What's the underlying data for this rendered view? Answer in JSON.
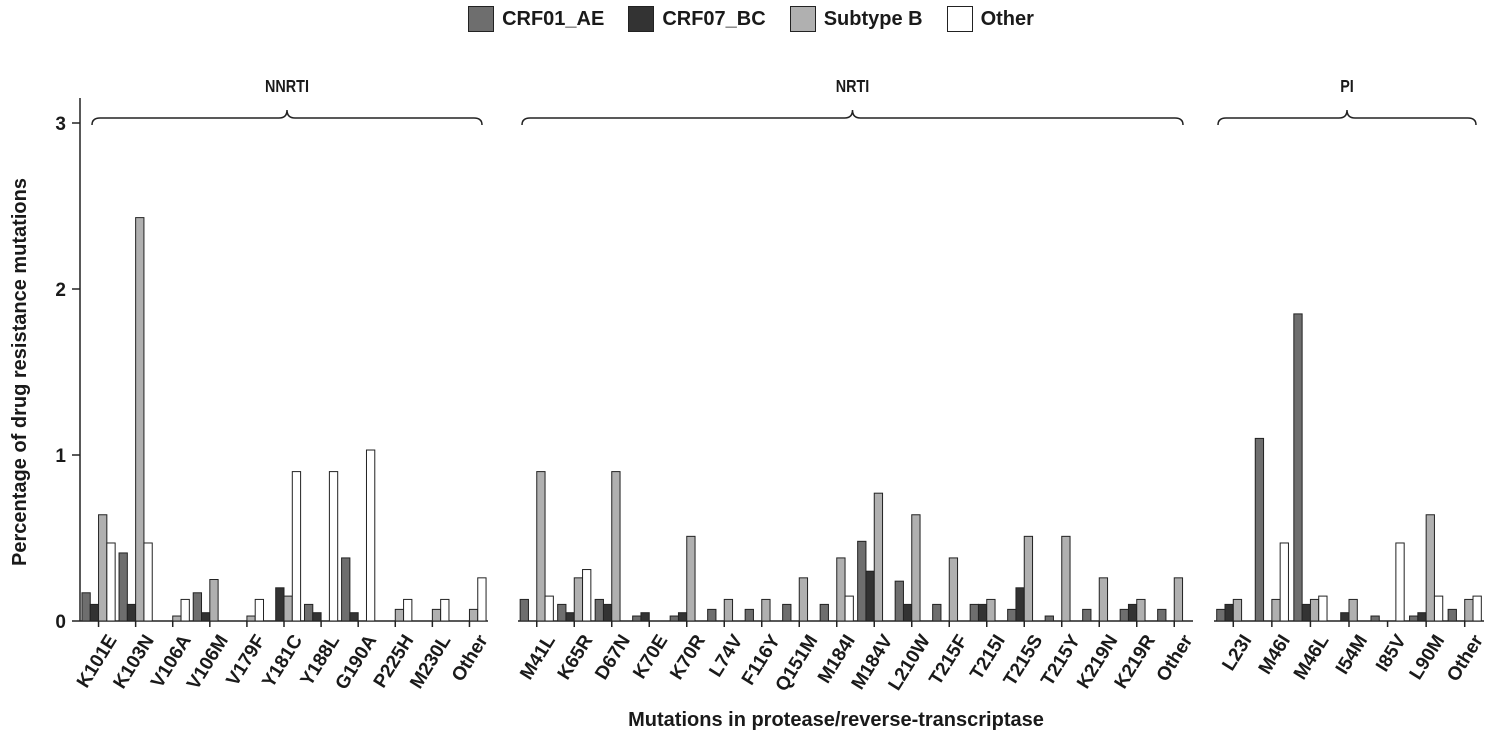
{
  "chart_data": {
    "type": "bar",
    "ylabel": "Percentage of drug resistance mutations",
    "xlabel": "Mutations in  protease/reverse-transcriptase",
    "ylim": [
      0,
      3.15
    ],
    "yticks": [
      0,
      1,
      2,
      3
    ],
    "legend_position": "top-center",
    "series": [
      {
        "name": "CRF01_AE",
        "color": "#6e6e6e"
      },
      {
        "name": "CRF07_BC",
        "color": "#333333"
      },
      {
        "name": "Subtype B",
        "color": "#b0b0b0"
      },
      {
        "name": "Other",
        "color": "#ffffff"
      }
    ],
    "groups": [
      {
        "name": "NNRTI",
        "categories": [
          "K101E",
          "K103N",
          "V106A",
          "V106M",
          "V179F",
          "Y181C",
          "Y188L",
          "G190A",
          "P225H",
          "M230L",
          "Other"
        ],
        "values": {
          "CRF01_AE": [
            0.17,
            0.41,
            0,
            0.17,
            0,
            0,
            0.1,
            0.38,
            0,
            0,
            0
          ],
          "CRF07_BC": [
            0.1,
            0.1,
            0,
            0.05,
            0,
            0.2,
            0.05,
            0.05,
            0,
            0,
            0
          ],
          "Subtype B": [
            0.64,
            2.43,
            0.03,
            0.25,
            0.03,
            0.15,
            0,
            0,
            0.07,
            0.07,
            0.07
          ],
          "Other": [
            0.47,
            0.47,
            0.13,
            0,
            0.13,
            0.9,
            0.9,
            1.03,
            0.13,
            0.13,
            0.26
          ]
        }
      },
      {
        "name": "NRTI",
        "categories": [
          "M41L",
          "K65R",
          "D67N",
          "K70E",
          "K70R",
          "L74V",
          "F116Y",
          "Q151M",
          "M184I",
          "M184V",
          "L210W",
          "T215F",
          "T215I",
          "T215S",
          "T215Y",
          "K219N",
          "K219R",
          "Other"
        ],
        "values": {
          "CRF01_AE": [
            0.13,
            0.1,
            0.13,
            0.03,
            0.03,
            0.07,
            0.07,
            0.1,
            0.1,
            0.48,
            0.24,
            0.1,
            0.1,
            0.07,
            0.03,
            0.07,
            0.07,
            0.07
          ],
          "CRF07_BC": [
            0,
            0.05,
            0.1,
            0.05,
            0.05,
            0,
            0,
            0,
            0,
            0.3,
            0.1,
            0,
            0.1,
            0.2,
            0,
            0,
            0.1,
            0
          ],
          "Subtype B": [
            0.9,
            0.26,
            0.9,
            0,
            0.51,
            0.13,
            0.13,
            0.26,
            0.38,
            0.77,
            0.64,
            0.38,
            0.13,
            0.51,
            0.51,
            0.26,
            0.13,
            0.26
          ],
          "Other": [
            0.15,
            0.31,
            0,
            0,
            0,
            0,
            0,
            0,
            0.15,
            0,
            0,
            0,
            0,
            0,
            0,
            0,
            0,
            0
          ]
        }
      },
      {
        "name": "PI",
        "categories": [
          "L23I",
          "M46I",
          "M46L",
          "I54M",
          "I85V",
          "L90M",
          "Other"
        ],
        "values": {
          "CRF01_AE": [
            0.07,
            1.1,
            1.85,
            0,
            0.03,
            0.03,
            0.07
          ],
          "CRF07_BC": [
            0.1,
            0,
            0.1,
            0.05,
            0,
            0.05,
            0
          ],
          "Subtype B": [
            0.13,
            0.13,
            0.13,
            0.13,
            0,
            0.64,
            0.13
          ],
          "Other": [
            0,
            0.47,
            0.15,
            0,
            0.47,
            0.15,
            0.15
          ]
        }
      }
    ]
  }
}
